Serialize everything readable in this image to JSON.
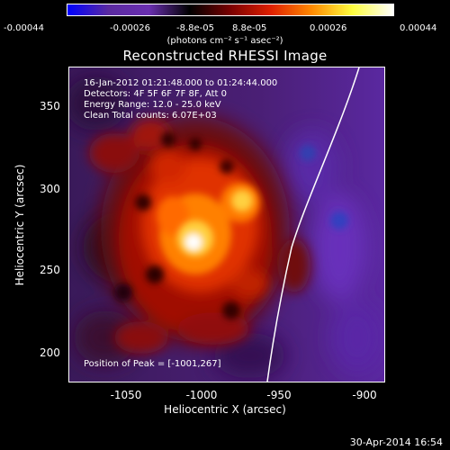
{
  "colorbar": {
    "ticks": [
      "-0.00044",
      "-0.00026",
      "-8.8e-05",
      "8.8e-05",
      "0.00026",
      "0.00044"
    ],
    "units": "(photons cm⁻² s⁻¹ asec⁻²)"
  },
  "title": "Reconstructed RHESSI Image",
  "info": {
    "time": "16-Jan-2012 01:21:48.000 to 01:24:44.000",
    "detectors": "Detectors: 4F 5F 6F 7F 8F, Att 0",
    "energy": "Energy Range: 12.0 - 25.0 keV",
    "algorithm": "Clean    Total counts: 6.07E+03"
  },
  "peak_text": "Position of Peak = [-1001,267]",
  "axes": {
    "xlabel": "Heliocentric X (arcsec)",
    "ylabel": "Heliocentric Y (arcsec)",
    "xticks": [
      "-1050",
      "-1000",
      "-950",
      "-900"
    ],
    "yticks": [
      "350",
      "300",
      "250",
      "200"
    ]
  },
  "footer": "30-Apr-2014 16:54",
  "colors": {
    "background": "#000000",
    "colorbar_gradient": [
      "#0000ff",
      "#5a2aa0",
      "#6a2fb0",
      "#000000",
      "#7a0000",
      "#e02000",
      "#ff8a00",
      "#ffff40",
      "#ffffff"
    ]
  }
}
